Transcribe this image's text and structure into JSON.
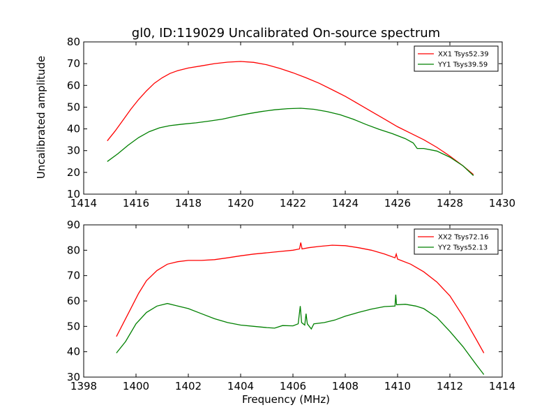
{
  "title": "gl0, ID:119029 Uncalibrated On-source spectrum",
  "chart_data": [
    {
      "type": "line",
      "ylabel": "Uncalibrated amplitude",
      "xlabel": "",
      "xlim": [
        1414,
        1430
      ],
      "ylim": [
        10,
        80
      ],
      "xticks": [
        1414,
        1416,
        1418,
        1420,
        1422,
        1424,
        1426,
        1428,
        1430
      ],
      "yticks": [
        10,
        20,
        30,
        40,
        50,
        60,
        70,
        80
      ],
      "legend_position": "top-right",
      "grid": false,
      "series": [
        {
          "name": "XX1 Tsys52.39",
          "color": "#ff0000",
          "points": [
            [
              1414.9,
              34.5
            ],
            [
              1415.2,
              39
            ],
            [
              1415.5,
              44
            ],
            [
              1415.8,
              49
            ],
            [
              1416.1,
              53.5
            ],
            [
              1416.4,
              57.5
            ],
            [
              1416.7,
              61
            ],
            [
              1417.0,
              63.5
            ],
            [
              1417.3,
              65.5
            ],
            [
              1417.6,
              66.8
            ],
            [
              1418.0,
              68
            ],
            [
              1418.5,
              69
            ],
            [
              1419.0,
              70
            ],
            [
              1419.5,
              70.7
            ],
            [
              1420.0,
              71
            ],
            [
              1420.5,
              70.6
            ],
            [
              1421.0,
              69.5
            ],
            [
              1421.5,
              67.8
            ],
            [
              1422.0,
              65.8
            ],
            [
              1422.5,
              63.5
            ],
            [
              1423.0,
              61
            ],
            [
              1423.5,
              58
            ],
            [
              1424.0,
              55
            ],
            [
              1424.5,
              51.5
            ],
            [
              1425.0,
              48
            ],
            [
              1425.5,
              44.5
            ],
            [
              1426.0,
              41
            ],
            [
              1426.5,
              38
            ],
            [
              1427.0,
              35
            ],
            [
              1427.5,
              31.5
            ],
            [
              1428.0,
              27.5
            ],
            [
              1428.5,
              23
            ],
            [
              1428.9,
              19
            ]
          ]
        },
        {
          "name": "YY1 Tsys39.59",
          "color": "#008000",
          "points": [
            [
              1414.9,
              25
            ],
            [
              1415.3,
              28.5
            ],
            [
              1415.7,
              32.5
            ],
            [
              1416.1,
              36
            ],
            [
              1416.5,
              38.7
            ],
            [
              1416.9,
              40.5
            ],
            [
              1417.3,
              41.5
            ],
            [
              1417.8,
              42.2
            ],
            [
              1418.3,
              42.8
            ],
            [
              1418.8,
              43.6
            ],
            [
              1419.3,
              44.5
            ],
            [
              1419.8,
              45.8
            ],
            [
              1420.3,
              47
            ],
            [
              1420.8,
              48
            ],
            [
              1421.3,
              48.8
            ],
            [
              1421.8,
              49.3
            ],
            [
              1422.3,
              49.5
            ],
            [
              1422.8,
              49
            ],
            [
              1423.3,
              48
            ],
            [
              1423.8,
              46.5
            ],
            [
              1424.3,
              44.5
            ],
            [
              1424.8,
              42
            ],
            [
              1425.3,
              39.8
            ],
            [
              1425.8,
              37.8
            ],
            [
              1426.3,
              35.5
            ],
            [
              1426.6,
              33.5
            ],
            [
              1426.75,
              31
            ],
            [
              1427.0,
              31
            ],
            [
              1427.5,
              29.8
            ],
            [
              1428.0,
              27
            ],
            [
              1428.5,
              23
            ],
            [
              1428.9,
              18.5
            ]
          ]
        }
      ]
    },
    {
      "type": "line",
      "ylabel": "",
      "xlabel": "Frequency (MHz)",
      "xlim": [
        1398,
        1414
      ],
      "ylim": [
        30,
        90
      ],
      "xticks": [
        1398,
        1400,
        1402,
        1404,
        1406,
        1408,
        1410,
        1412,
        1414
      ],
      "yticks": [
        30,
        40,
        50,
        60,
        70,
        80,
        90
      ],
      "legend_position": "top-right",
      "grid": false,
      "series": [
        {
          "name": "XX2 Tsys72.16",
          "color": "#ff0000",
          "points": [
            [
              1399.25,
              46
            ],
            [
              1399.5,
              51
            ],
            [
              1399.8,
              57
            ],
            [
              1400.1,
              63
            ],
            [
              1400.4,
              68
            ],
            [
              1400.8,
              72
            ],
            [
              1401.2,
              74.5
            ],
            [
              1401.6,
              75.5
            ],
            [
              1402.0,
              76
            ],
            [
              1402.5,
              76
            ],
            [
              1403.0,
              76.3
            ],
            [
              1403.5,
              77
            ],
            [
              1404.0,
              77.8
            ],
            [
              1404.5,
              78.5
            ],
            [
              1405.0,
              79
            ],
            [
              1405.5,
              79.5
            ],
            [
              1406.0,
              80
            ],
            [
              1406.25,
              80.5
            ],
            [
              1406.3,
              83
            ],
            [
              1406.35,
              80.5
            ],
            [
              1406.6,
              81
            ],
            [
              1407.0,
              81.5
            ],
            [
              1407.5,
              82
            ],
            [
              1408.0,
              81.8
            ],
            [
              1408.5,
              81
            ],
            [
              1409.0,
              80
            ],
            [
              1409.5,
              78.5
            ],
            [
              1409.9,
              77
            ],
            [
              1409.95,
              78.5
            ],
            [
              1410.0,
              76.5
            ],
            [
              1410.5,
              74.5
            ],
            [
              1411.0,
              71.5
            ],
            [
              1411.5,
              67.5
            ],
            [
              1412.0,
              62
            ],
            [
              1412.5,
              54
            ],
            [
              1413.0,
              45
            ],
            [
              1413.3,
              39.5
            ]
          ]
        },
        {
          "name": "YY2 Tsys52.13",
          "color": "#008000",
          "points": [
            [
              1399.25,
              39.5
            ],
            [
              1399.6,
              44
            ],
            [
              1400.0,
              51
            ],
            [
              1400.4,
              55.5
            ],
            [
              1400.8,
              58
            ],
            [
              1401.2,
              59
            ],
            [
              1401.6,
              58
            ],
            [
              1402.0,
              57
            ],
            [
              1402.5,
              55
            ],
            [
              1403.0,
              53
            ],
            [
              1403.5,
              51.5
            ],
            [
              1404.0,
              50.5
            ],
            [
              1404.5,
              50
            ],
            [
              1405.0,
              49.5
            ],
            [
              1405.3,
              49.3
            ],
            [
              1405.6,
              50.3
            ],
            [
              1406.0,
              50.2
            ],
            [
              1406.2,
              51
            ],
            [
              1406.28,
              58
            ],
            [
              1406.33,
              51.5
            ],
            [
              1406.45,
              50.5
            ],
            [
              1406.5,
              55
            ],
            [
              1406.55,
              51
            ],
            [
              1406.7,
              49
            ],
            [
              1406.8,
              51
            ],
            [
              1407.2,
              51.5
            ],
            [
              1407.6,
              52.5
            ],
            [
              1408.0,
              54
            ],
            [
              1408.5,
              55.5
            ],
            [
              1409.0,
              56.8
            ],
            [
              1409.5,
              57.8
            ],
            [
              1409.9,
              58
            ],
            [
              1409.93,
              62.5
            ],
            [
              1409.96,
              58.5
            ],
            [
              1410.3,
              58.7
            ],
            [
              1410.7,
              58
            ],
            [
              1411.0,
              57
            ],
            [
              1411.5,
              53.5
            ],
            [
              1412.0,
              48
            ],
            [
              1412.5,
              42
            ],
            [
              1413.0,
              35
            ],
            [
              1413.3,
              31
            ]
          ]
        }
      ]
    }
  ]
}
